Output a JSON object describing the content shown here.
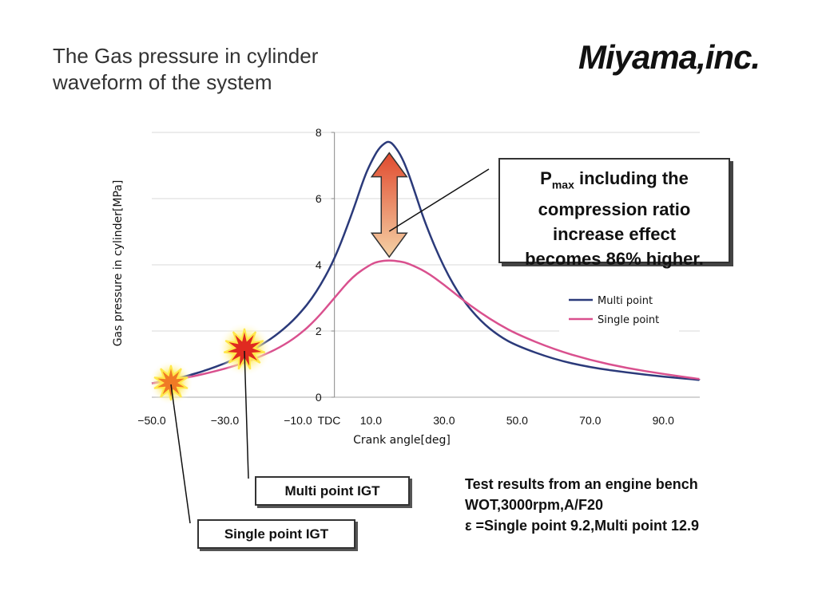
{
  "slide": {
    "title_line1": "The Gas pressure in cylinder",
    "title_line2": "waveform of the system",
    "logo_text": "Miyama,inc."
  },
  "callout": {
    "p_letter": "P",
    "p_subscript": "max",
    "line1_rest": " including the",
    "line2": "compression ratio",
    "line3": "increase effect",
    "line4": "becomes 86% higher."
  },
  "labels": {
    "multi_igt": "Multi point IGT",
    "single_igt": "Single point IGT"
  },
  "test_results": {
    "line1": "Test results from an engine bench",
    "line2": "WOT,3000rpm,A/F20",
    "line3": "ε =Single point 9.2,Multi point 12.9"
  },
  "colors": {
    "multi_point": "#2b3a7a",
    "single_point": "#d9508e",
    "arrow_top": "#e04a2e",
    "arrow_bottom": "#f5d2a6",
    "burst_multi": "#e02a20",
    "burst_single": "#f07a25",
    "burst_glow": "#ffe84a"
  },
  "chart_data": {
    "type": "line",
    "xlabel": "Crank angle[deg]",
    "ylabel": "Gas pressure in cylinder[MPa]",
    "xlim": [
      -50,
      100
    ],
    "ylim": [
      0,
      8
    ],
    "xticks": [
      -50,
      -30,
      -10,
      10,
      30,
      50,
      70,
      90
    ],
    "xtick_labels": [
      "−50.0",
      "−30.0",
      "−10.0",
      "10.0",
      "30.0",
      "50.0",
      "70.0",
      "90.0"
    ],
    "yticks": [
      0,
      2,
      4,
      6,
      8
    ],
    "ytick_labels": [
      "0",
      "2",
      "4",
      "6",
      "8"
    ],
    "tdc_label": "TDC",
    "legend_position": "right",
    "series": [
      {
        "name": "Multi point",
        "x": [
          -50,
          -45,
          -40,
          -35,
          -30,
          -25,
          -20,
          -15,
          -10,
          -5,
          0,
          5,
          8,
          10,
          12,
          14,
          15,
          16,
          18,
          20,
          22,
          25,
          30,
          35,
          40,
          45,
          50,
          60,
          70,
          80,
          90,
          100
        ],
        "y": [
          0.42,
          0.52,
          0.65,
          0.82,
          1.02,
          1.27,
          1.57,
          1.95,
          2.45,
          3.15,
          4.15,
          5.6,
          6.6,
          7.1,
          7.5,
          7.7,
          7.72,
          7.65,
          7.35,
          6.85,
          6.2,
          5.2,
          3.9,
          2.95,
          2.3,
          1.85,
          1.55,
          1.15,
          0.9,
          0.75,
          0.62,
          0.52
        ]
      },
      {
        "name": "Single point",
        "x": [
          -50,
          -45,
          -40,
          -35,
          -30,
          -25,
          -20,
          -15,
          -10,
          -5,
          0,
          5,
          10,
          12,
          15,
          18,
          20,
          25,
          30,
          35,
          40,
          45,
          50,
          60,
          70,
          80,
          90,
          100
        ],
        "y": [
          0.42,
          0.5,
          0.6,
          0.72,
          0.86,
          1.03,
          1.24,
          1.5,
          1.85,
          2.35,
          3.0,
          3.65,
          4.02,
          4.1,
          4.14,
          4.1,
          4.05,
          3.8,
          3.4,
          2.95,
          2.55,
          2.2,
          1.9,
          1.45,
          1.12,
          0.88,
          0.7,
          0.55
        ]
      }
    ],
    "annotations": [
      {
        "type": "double-arrow",
        "x": 15,
        "y_from": 4.14,
        "y_to": 7.72
      }
    ]
  }
}
